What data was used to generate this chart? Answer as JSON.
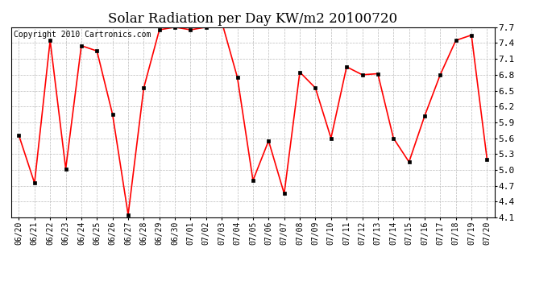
{
  "title": "Solar Radiation per Day KW/m2 20100720",
  "copyright": "Copyright 2010 Cartronics.com",
  "labels": [
    "06/20",
    "06/21",
    "06/22",
    "06/23",
    "06/24",
    "06/25",
    "06/26",
    "06/27",
    "06/28",
    "06/29",
    "06/30",
    "07/01",
    "07/02",
    "07/03",
    "07/04",
    "07/05",
    "07/06",
    "07/07",
    "07/08",
    "07/09",
    "07/10",
    "07/11",
    "07/12",
    "07/13",
    "07/14",
    "07/15",
    "07/16",
    "07/17",
    "07/18",
    "07/19",
    "07/20"
  ],
  "values": [
    5.65,
    4.75,
    7.45,
    5.02,
    7.35,
    7.25,
    6.05,
    4.15,
    6.55,
    7.65,
    7.7,
    7.65,
    7.7,
    7.8,
    6.75,
    4.8,
    5.55,
    4.55,
    6.85,
    6.55,
    5.6,
    6.95,
    6.8,
    6.82,
    5.6,
    5.15,
    6.02,
    6.8,
    7.45,
    7.55,
    5.2
  ],
  "ylim": [
    4.1,
    7.7
  ],
  "yticks": [
    4.1,
    4.4,
    4.7,
    5.0,
    5.3,
    5.6,
    5.9,
    6.2,
    6.5,
    6.8,
    7.1,
    7.4,
    7.7
  ],
  "line_color": "red",
  "marker_color": "black",
  "bg_color": "#ffffff",
  "grid_color": "#bbbbbb",
  "title_fontsize": 12,
  "copyright_fontsize": 7,
  "tick_fontsize": 7,
  "ytick_fontsize": 8
}
